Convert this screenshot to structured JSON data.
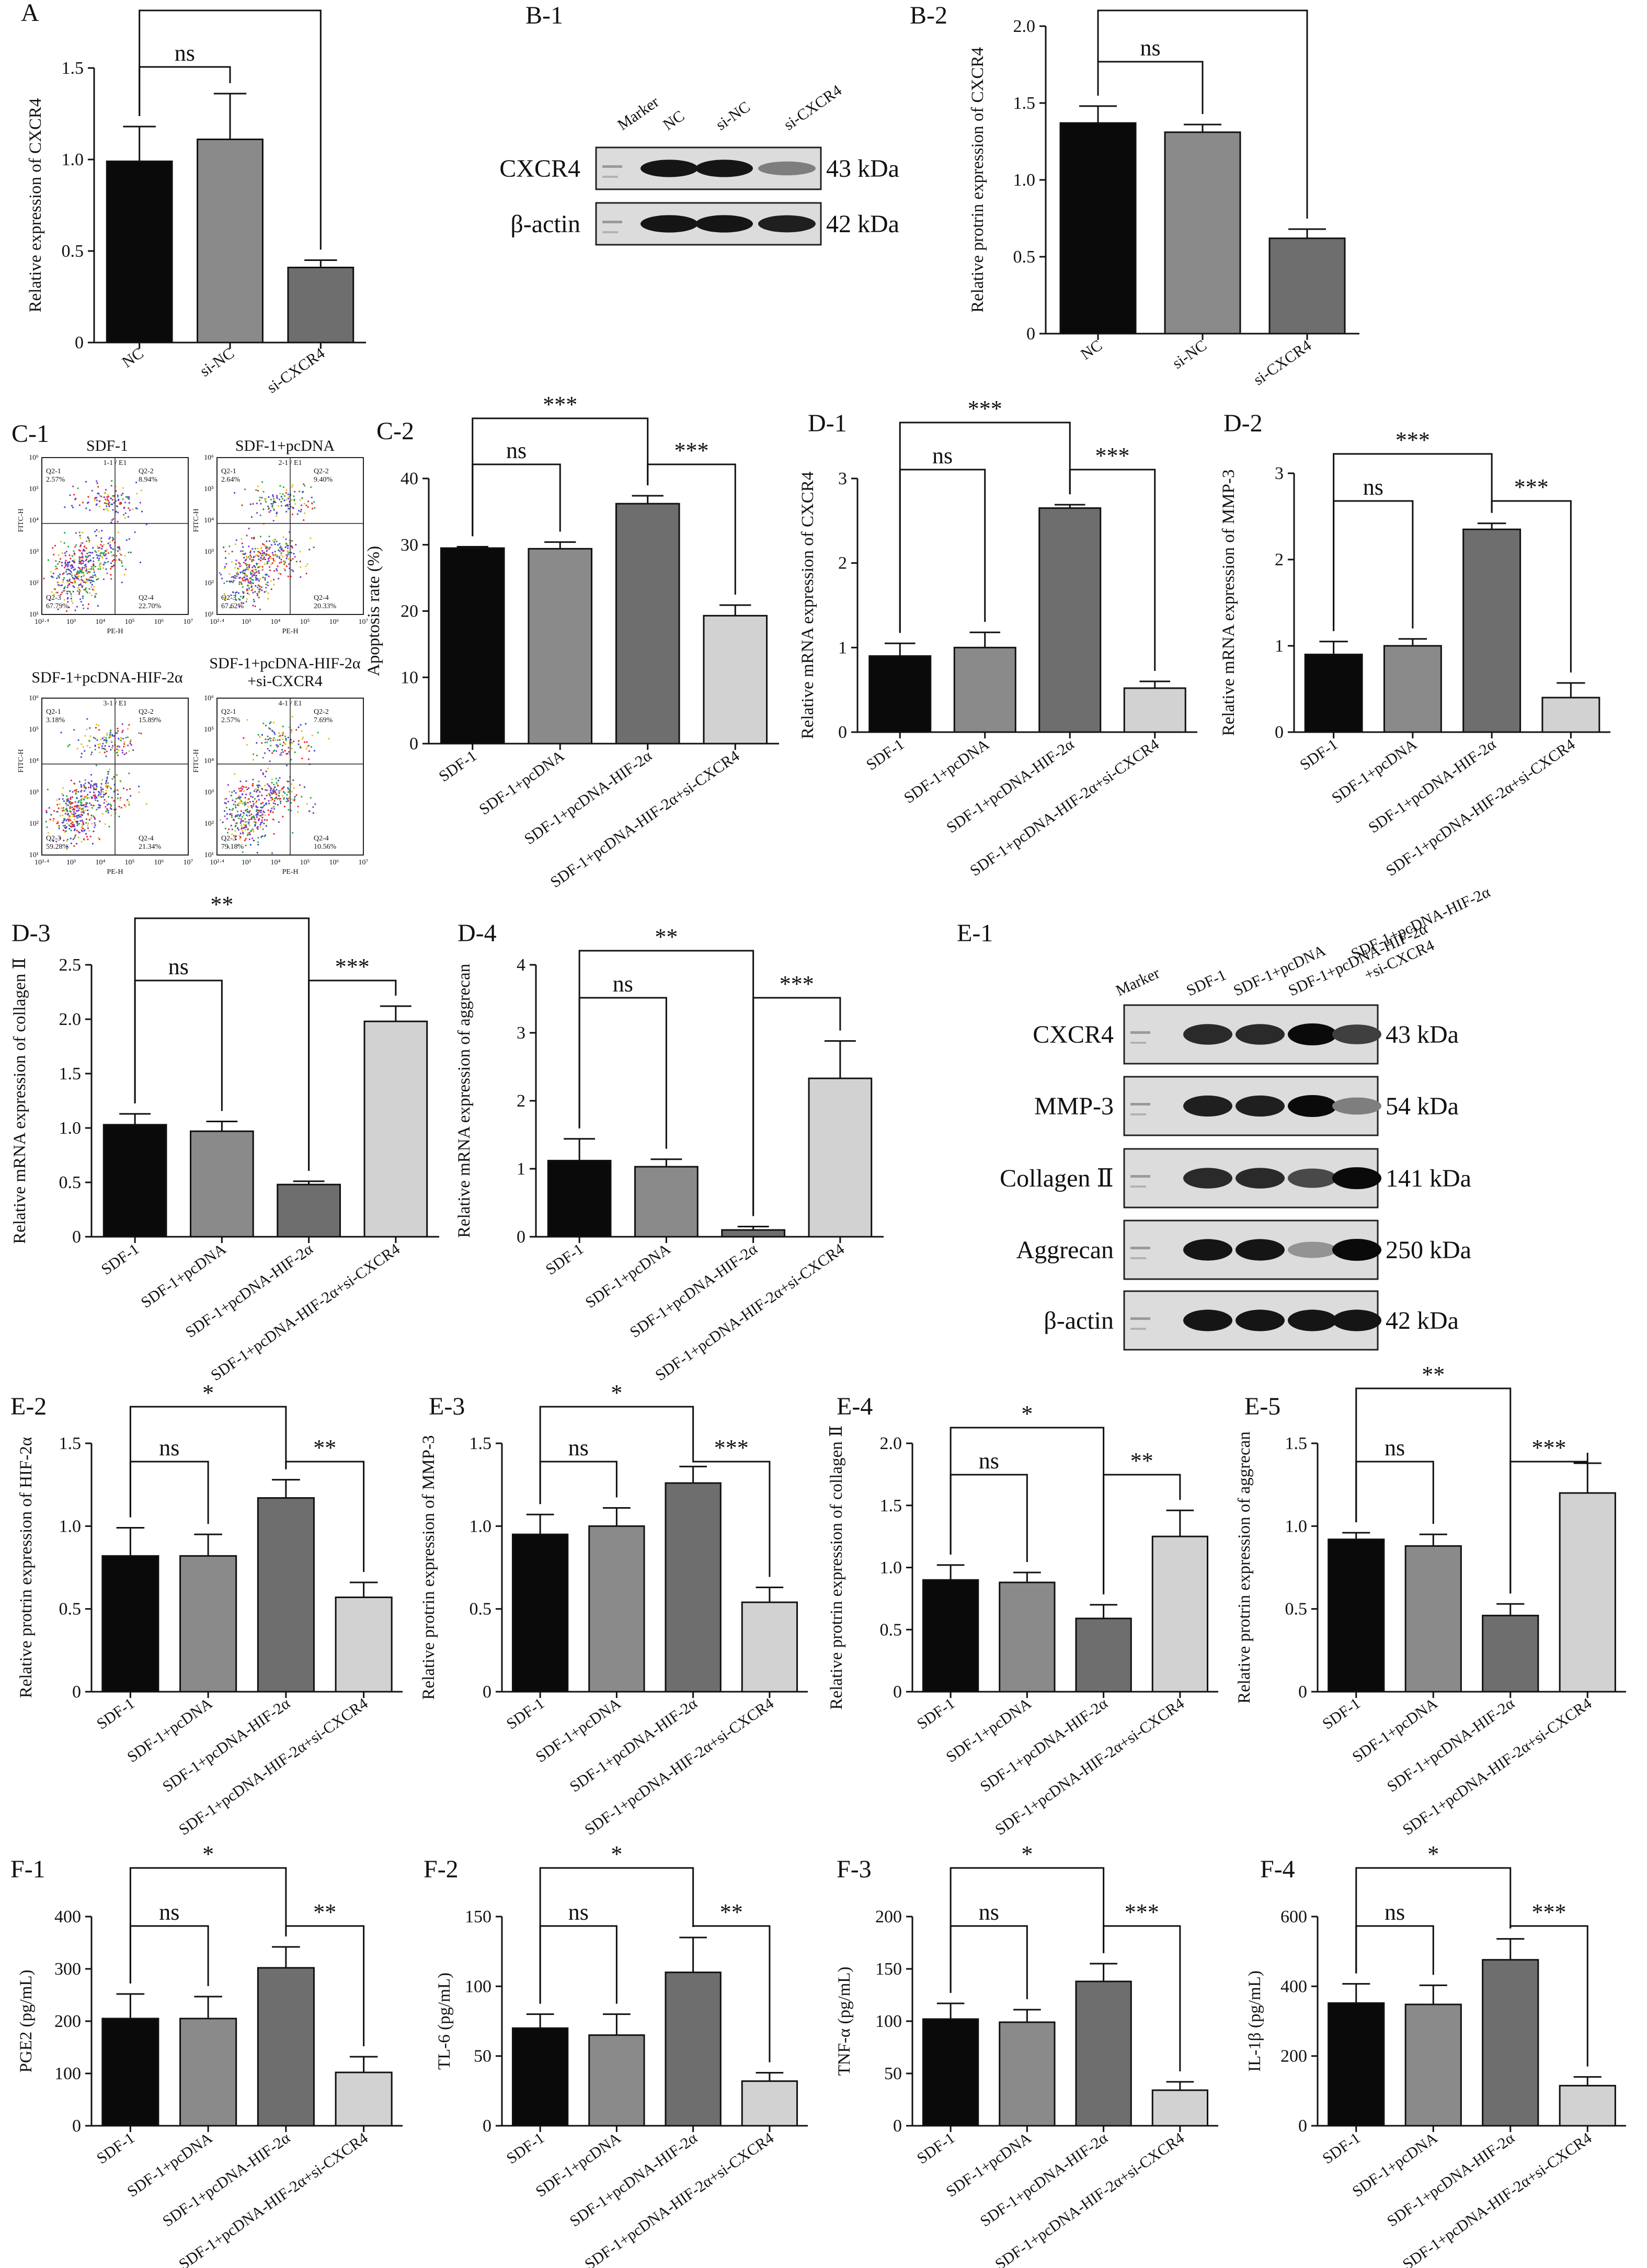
{
  "colors": {
    "dark": "#0a0a0a",
    "mid": "#8a8a8a",
    "darkgray": "#6e6e6e",
    "light": "#d2d2d2"
  },
  "chart_data": [
    {
      "label": "A",
      "type": "bar",
      "categories": [
        "NC",
        "si-NC",
        "si-CXCR4"
      ],
      "values": [
        0.99,
        1.11,
        0.41
      ],
      "errors": [
        0.19,
        0.25,
        0.04
      ],
      "ylabel": "Relative expression of CXCR4",
      "ylim": [
        0,
        1.5
      ],
      "yticks": [
        "0",
        "0.5",
        "1.0",
        "1.5"
      ],
      "sig": [
        {
          "a": 0,
          "b": 1,
          "text": "ns",
          "level": 0
        },
        {
          "a": 0,
          "b": 2,
          "text": "**",
          "level": 1
        }
      ]
    },
    {
      "label": "B-2",
      "type": "bar",
      "categories": [
        "NC",
        "si-NC",
        "si-CXCR4"
      ],
      "values": [
        1.37,
        1.31,
        0.62
      ],
      "errors": [
        0.11,
        0.05,
        0.06
      ],
      "ylabel": "Relative protrin expression of CXCR4",
      "ylim": [
        0,
        2.0
      ],
      "yticks": [
        "0",
        "0.5",
        "1.0",
        "1.5",
        "2.0"
      ],
      "sig": [
        {
          "a": 0,
          "b": 1,
          "text": "ns",
          "level": 0
        },
        {
          "a": 0,
          "b": 2,
          "text": "***",
          "level": 1
        }
      ]
    },
    {
      "label": "C-2",
      "type": "bar",
      "categories": [
        "SDF-1",
        "SDF-1+pcDNA",
        "SDF-1+pcDNA-HIF-2α",
        "SDF-1+pcDNA-HIF-2α+si-CXCR4"
      ],
      "values": [
        29.5,
        29.4,
        36.2,
        19.3
      ],
      "errors": [
        0.2,
        1.0,
        1.2,
        1.6
      ],
      "ylabel": "Apoptosis rate (%)",
      "ylim": [
        0,
        40
      ],
      "yticks": [
        "0",
        "10",
        "20",
        "30",
        "40"
      ],
      "sig": [
        {
          "a": 0,
          "b": 1,
          "text": "ns",
          "level": 0
        },
        {
          "a": 2,
          "b": 3,
          "text": "***",
          "level": 0
        },
        {
          "a": 0,
          "b": 2,
          "text": "***",
          "level": 1
        }
      ]
    },
    {
      "label": "D-1",
      "type": "bar",
      "categories": [
        "SDF-1",
        "SDF-1+pcDNA",
        "SDF-1+pcDNA-HIF-2α",
        "SDF-1+pcDNA-HIF-2α+si-CXCR4"
      ],
      "values": [
        0.9,
        1.0,
        2.65,
        0.52
      ],
      "errors": [
        0.15,
        0.18,
        0.04,
        0.08
      ],
      "ylabel": "Relative mRNA expression of CXCR4",
      "ylim": [
        0,
        3
      ],
      "yticks": [
        "0",
        "1",
        "2",
        "3"
      ],
      "sig": [
        {
          "a": 0,
          "b": 1,
          "text": "ns",
          "level": 0
        },
        {
          "a": 2,
          "b": 3,
          "text": "***",
          "level": 0
        },
        {
          "a": 0,
          "b": 2,
          "text": "***",
          "level": 1
        }
      ]
    },
    {
      "label": "D-2",
      "type": "bar",
      "categories": [
        "SDF-1",
        "SDF-1+pcDNA",
        "SDF-1+pcDNA-HIF-2α",
        "SDF-1+pcDNA-HIF-2α+si-CXCR4"
      ],
      "values": [
        0.9,
        1.0,
        2.35,
        0.4
      ],
      "errors": [
        0.15,
        0.08,
        0.07,
        0.17
      ],
      "ylabel": "Relative mRNA expression of MMP-3",
      "ylim": [
        0,
        3
      ],
      "yticks": [
        "0",
        "1",
        "2",
        "3"
      ],
      "sig": [
        {
          "a": 0,
          "b": 1,
          "text": "ns",
          "level": 0
        },
        {
          "a": 2,
          "b": 3,
          "text": "***",
          "level": 0
        },
        {
          "a": 0,
          "b": 2,
          "text": "***",
          "level": 1
        }
      ]
    },
    {
      "label": "D-3",
      "type": "bar",
      "categories": [
        "SDF-1",
        "SDF-1+pcDNA",
        "SDF-1+pcDNA-HIF-2α",
        "SDF-1+pcDNA-HIF-2α+si-CXCR4"
      ],
      "values": [
        1.03,
        0.97,
        0.48,
        1.98
      ],
      "errors": [
        0.1,
        0.09,
        0.03,
        0.14
      ],
      "ylabel": "Relative mRNA expression of collagen Ⅱ",
      "ylim": [
        0,
        2.5
      ],
      "yticks": [
        "0",
        "0.5",
        "1.0",
        "1.5",
        "2.0",
        "2.5"
      ],
      "sig": [
        {
          "a": 0,
          "b": 1,
          "text": "ns",
          "level": 0
        },
        {
          "a": 2,
          "b": 3,
          "text": "***",
          "level": 0
        },
        {
          "a": 0,
          "b": 2,
          "text": "**",
          "level": 1
        }
      ]
    },
    {
      "label": "D-4",
      "type": "bar",
      "categories": [
        "SDF-1",
        "SDF-1+pcDNA",
        "SDF-1+pcDNA-HIF-2α",
        "SDF-1+pcDNA-HIF-2α+si-CXCR4"
      ],
      "values": [
        1.12,
        1.03,
        0.1,
        2.33
      ],
      "errors": [
        0.32,
        0.11,
        0.05,
        0.55
      ],
      "ylabel": "Relative mRNA expression of aggrecan",
      "ylim": [
        0,
        4
      ],
      "yticks": [
        "0",
        "1",
        "2",
        "3",
        "4"
      ],
      "sig": [
        {
          "a": 0,
          "b": 1,
          "text": "ns",
          "level": 0
        },
        {
          "a": 2,
          "b": 3,
          "text": "***",
          "level": 0
        },
        {
          "a": 0,
          "b": 2,
          "text": "**",
          "level": 1
        }
      ]
    },
    {
      "label": "E-2",
      "type": "bar",
      "categories": [
        "SDF-1",
        "SDF-1+pcDNA",
        "SDF-1+pcDNA-HIF-2α",
        "SDF-1+pcDNA-HIF-2α+si-CXCR4"
      ],
      "values": [
        0.82,
        0.82,
        1.17,
        0.57
      ],
      "errors": [
        0.17,
        0.13,
        0.11,
        0.09
      ],
      "ylabel": "Relative protrin expression of HIF-2α",
      "ylim": [
        0,
        1.5
      ],
      "yticks": [
        "0",
        "0.5",
        "1.0",
        "1.5"
      ],
      "sig": [
        {
          "a": 0,
          "b": 1,
          "text": "ns",
          "level": 0
        },
        {
          "a": 2,
          "b": 3,
          "text": "**",
          "level": 0
        },
        {
          "a": 0,
          "b": 2,
          "text": "*",
          "level": 1
        }
      ]
    },
    {
      "label": "E-3",
      "type": "bar",
      "categories": [
        "SDF-1",
        "SDF-1+pcDNA",
        "SDF-1+pcDNA-HIF-2α",
        "SDF-1+pcDNA-HIF-2α+si-CXCR4"
      ],
      "values": [
        0.95,
        1.0,
        1.26,
        0.54
      ],
      "errors": [
        0.12,
        0.11,
        0.1,
        0.09
      ],
      "ylabel": "Relative protrin expression of MMP-3",
      "ylim": [
        0,
        1.5
      ],
      "yticks": [
        "0",
        "0.5",
        "1.0",
        "1.5"
      ],
      "sig": [
        {
          "a": 0,
          "b": 1,
          "text": "ns",
          "level": 0
        },
        {
          "a": 2,
          "b": 3,
          "text": "***",
          "level": 0
        },
        {
          "a": 0,
          "b": 2,
          "text": "*",
          "level": 1
        }
      ]
    },
    {
      "label": "E-4",
      "type": "bar",
      "categories": [
        "SDF-1",
        "SDF-1+pcDNA",
        "SDF-1+pcDNA-HIF-2α",
        "SDF-1+pcDNA-HIF-2α+si-CXCR4"
      ],
      "values": [
        0.9,
        0.88,
        0.59,
        1.25
      ],
      "errors": [
        0.12,
        0.08,
        0.11,
        0.21
      ],
      "ylabel": "Relative protrin expression of collagen Ⅱ",
      "ylim": [
        0,
        2.0
      ],
      "yticks": [
        "0",
        "0.5",
        "1.0",
        "1.5",
        "2.0"
      ],
      "sig": [
        {
          "a": 0,
          "b": 1,
          "text": "ns",
          "level": 0
        },
        {
          "a": 2,
          "b": 3,
          "text": "**",
          "level": 0
        },
        {
          "a": 0,
          "b": 2,
          "text": "*",
          "level": 1
        }
      ]
    },
    {
      "label": "E-5",
      "type": "bar",
      "categories": [
        "SDF-1",
        "SDF-1+pcDNA",
        "SDF-1+pcDNA-HIF-2α",
        "SDF-1+pcDNA-HIF-2α+si-CXCR4"
      ],
      "values": [
        0.92,
        0.88,
        0.46,
        1.2
      ],
      "errors": [
        0.04,
        0.07,
        0.07,
        0.18
      ],
      "ylabel": "Relative protrin expression of aggrecan",
      "ylim": [
        0,
        1.5
      ],
      "yticks": [
        "0",
        "0.5",
        "1.0",
        "1.5"
      ],
      "sig": [
        {
          "a": 0,
          "b": 1,
          "text": "ns",
          "level": 0
        },
        {
          "a": 2,
          "b": 3,
          "text": "***",
          "level": 0
        },
        {
          "a": 0,
          "b": 2,
          "text": "**",
          "level": 1
        }
      ]
    },
    {
      "label": "F-1",
      "type": "bar",
      "categories": [
        "SDF-1",
        "SDF-1+pcDNA",
        "SDF-1+pcDNA-HIF-2α",
        "SDF-1+pcDNA-HIF-2α+si-CXCR4"
      ],
      "values": [
        205,
        205,
        302,
        102
      ],
      "errors": [
        47,
        42,
        40,
        30
      ],
      "ylabel": "PGE2 (pg/mL)",
      "ylim": [
        0,
        400
      ],
      "yticks": [
        "0",
        "100",
        "200",
        "300",
        "400"
      ],
      "sig": [
        {
          "a": 0,
          "b": 1,
          "text": "ns",
          "level": 0
        },
        {
          "a": 2,
          "b": 3,
          "text": "**",
          "level": 0
        },
        {
          "a": 0,
          "b": 2,
          "text": "*",
          "level": 1
        }
      ]
    },
    {
      "label": "F-2",
      "type": "bar",
      "categories": [
        "SDF-1",
        "SDF-1+pcDNA",
        "SDF-1+pcDNA-HIF-2α",
        "SDF-1+pcDNA-HIF-2α+si-CXCR4"
      ],
      "values": [
        70,
        65,
        110,
        32
      ],
      "errors": [
        10,
        15,
        25,
        6
      ],
      "ylabel": "TL-6 (pg/mL)",
      "ylim": [
        0,
        150
      ],
      "yticks": [
        "0",
        "50",
        "100",
        "150"
      ],
      "sig": [
        {
          "a": 0,
          "b": 1,
          "text": "ns",
          "level": 0
        },
        {
          "a": 2,
          "b": 3,
          "text": "**",
          "level": 0
        },
        {
          "a": 0,
          "b": 2,
          "text": "*",
          "level": 1
        }
      ]
    },
    {
      "label": "F-3",
      "type": "bar",
      "categories": [
        "SDF-1",
        "SDF-1+pcDNA",
        "SDF-1+pcDNA-HIF-2α",
        "SDF-1+pcDNA-HIF-2α+si-CXCR4"
      ],
      "values": [
        102,
        99,
        138,
        34
      ],
      "errors": [
        15,
        12,
        17,
        8
      ],
      "ylabel": "TNF-α (pg/mL)",
      "ylim": [
        0,
        200
      ],
      "yticks": [
        "0",
        "50",
        "100",
        "150",
        "200"
      ],
      "sig": [
        {
          "a": 0,
          "b": 1,
          "text": "ns",
          "level": 0
        },
        {
          "a": 2,
          "b": 3,
          "text": "***",
          "level": 0
        },
        {
          "a": 0,
          "b": 2,
          "text": "*",
          "level": 1
        }
      ]
    },
    {
      "label": "F-4",
      "type": "bar",
      "categories": [
        "SDF-1",
        "SDF-1+pcDNA",
        "SDF-1+pcDNA-HIF-2α",
        "SDF-1+pcDNA-HIF-2α+si-CXCR4"
      ],
      "values": [
        352,
        348,
        476,
        115
      ],
      "errors": [
        55,
        55,
        60,
        25
      ],
      "ylabel": "IL-1β (pg/mL)",
      "ylim": [
        0,
        600
      ],
      "yticks": [
        "0",
        "200",
        "400",
        "600"
      ],
      "sig": [
        {
          "a": 0,
          "b": 1,
          "text": "ns",
          "level": 0
        },
        {
          "a": 2,
          "b": 3,
          "text": "***",
          "level": 0
        },
        {
          "a": 0,
          "b": 2,
          "text": "*",
          "level": 1
        }
      ]
    }
  ],
  "blots": [
    {
      "label": "B-1",
      "lanes": [
        "Marker",
        "NC",
        "si-NC",
        "si-CXCR4"
      ],
      "rows": [
        {
          "protein": "CXCR4",
          "size": "43 kDa",
          "intensities": [
            0.95,
            0.95,
            0.45
          ]
        },
        {
          "protein": "β-actin",
          "size": "42 kDa",
          "intensities": [
            0.95,
            0.95,
            0.9
          ]
        }
      ]
    },
    {
      "label": "E-1",
      "lanes": [
        "Marker",
        "SDF-1",
        "SDF-1+pcDNA",
        "SDF-1+pcDNA-HIF-2α",
        "SDF-1+pcDNA-HIF-2α",
        "+si-CXCR4"
      ],
      "rows": [
        {
          "protein": "CXCR4",
          "size": "43 kDa",
          "intensities": [
            0.85,
            0.85,
            1.0,
            0.75
          ]
        },
        {
          "protein": "MMP-3",
          "size": "54 kDa",
          "intensities": [
            0.9,
            0.9,
            1.0,
            0.45
          ]
        },
        {
          "protein": "Collagen Ⅱ",
          "size": "141 kDa",
          "intensities": [
            0.85,
            0.85,
            0.7,
            1.0
          ]
        },
        {
          "protein": "Aggrecan",
          "size": "250 kDa",
          "intensities": [
            0.95,
            0.95,
            0.35,
            1.0
          ]
        },
        {
          "protein": "β-actin",
          "size": "42 kDa",
          "intensities": [
            0.95,
            0.95,
            0.95,
            0.95
          ]
        }
      ]
    }
  ],
  "flow": {
    "label": "C-1",
    "plots": [
      {
        "title": "SDF-1",
        "gate": "1-1 / E1",
        "q1": "Q2-1",
        "q1v": "2.57%",
        "q2": "Q2-2",
        "q2v": "8.94%",
        "q3": "Q2-3",
        "q3v": "67.79%",
        "q4": "Q2-4",
        "q4v": "22.70%"
      },
      {
        "title": "SDF-1+pcDNA",
        "gate": "2-1 / E1",
        "q1": "Q2-1",
        "q1v": "2.64%",
        "q2": "Q2-2",
        "q2v": "9.40%",
        "q3": "Q2-3",
        "q3v": "67.62%",
        "q4": "Q2-4",
        "q4v": "20.33%"
      },
      {
        "title": "SDF-1+pcDNA-HIF-2α",
        "gate": "3-1 / E1",
        "q1": "Q2-1",
        "q1v": "3.18%",
        "q2": "Q2-2",
        "q2v": "15.89%",
        "q3": "Q2-3",
        "q3v": "59.28%",
        "q4": "Q2-4",
        "q4v": "21.34%"
      },
      {
        "title": "SDF-1+pcDNA-HIF-2α",
        "title2": "+si-CXCR4",
        "gate": "4-1 / E1",
        "q1": "Q2-1",
        "q1v": "2.57%",
        "q2": "Q2-2",
        "q2v": "7.69%",
        "q3": "Q2-3",
        "q3v": "79.18%",
        "q4": "Q2-4",
        "q4v": "10.56%"
      }
    ],
    "xaxis": "PE-H",
    "yaxis": "FITC-H",
    "xticks": [
      "10²·⁴",
      "10³",
      "10⁴",
      "10⁵",
      "10⁶",
      "10⁷"
    ],
    "yticks": [
      "10¹",
      "10²",
      "10³",
      "10⁴",
      "10⁵",
      "10⁶"
    ]
  }
}
